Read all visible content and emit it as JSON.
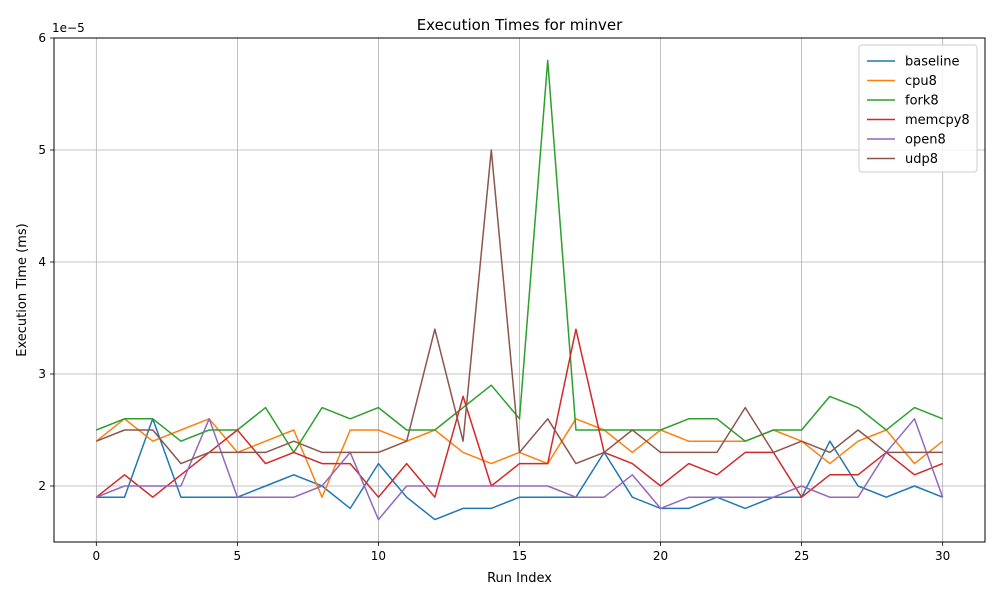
{
  "chart_data": {
    "type": "line",
    "title": "Execution Times for minver",
    "xlabel": "Run Index",
    "ylabel": "Execution Time (ms)",
    "y_offset_label": "1e−5",
    "y_scale_factor": 1e-05,
    "xlim": [
      -1.5,
      31.5
    ],
    "ylim": [
      1.5,
      6.0
    ],
    "x_ticks": [
      0,
      5,
      10,
      15,
      20,
      25,
      30
    ],
    "y_ticks": [
      2,
      3,
      4,
      5,
      6
    ],
    "grid": true,
    "legend_position": "top-right",
    "x": [
      0,
      1,
      2,
      3,
      4,
      5,
      6,
      7,
      8,
      9,
      10,
      11,
      12,
      13,
      14,
      15,
      16,
      17,
      18,
      19,
      20,
      21,
      22,
      23,
      24,
      25,
      26,
      27,
      28,
      29,
      30
    ],
    "series": [
      {
        "name": "baseline",
        "color": "#1f77b4",
        "values": [
          1.9,
          1.9,
          2.6,
          1.9,
          1.9,
          1.9,
          2.0,
          2.1,
          2.0,
          1.8,
          2.2,
          1.9,
          1.7,
          1.8,
          1.8,
          1.9,
          1.9,
          1.9,
          2.3,
          1.9,
          1.8,
          1.8,
          1.9,
          1.8,
          1.9,
          1.9,
          2.4,
          2.0,
          1.9,
          2.0,
          1.9
        ]
      },
      {
        "name": "cpu8",
        "color": "#ff7f0e",
        "values": [
          2.4,
          2.6,
          2.4,
          2.5,
          2.6,
          2.3,
          2.4,
          2.5,
          1.9,
          2.5,
          2.5,
          2.4,
          2.5,
          2.3,
          2.2,
          2.3,
          2.2,
          2.6,
          2.5,
          2.3,
          2.5,
          2.4,
          2.4,
          2.4,
          2.5,
          2.4,
          2.2,
          2.4,
          2.5,
          2.2,
          2.4
        ]
      },
      {
        "name": "fork8",
        "color": "#2ca02c",
        "values": [
          2.5,
          2.6,
          2.6,
          2.4,
          2.5,
          2.5,
          2.7,
          2.3,
          2.7,
          2.6,
          2.7,
          2.5,
          2.5,
          2.7,
          2.9,
          2.6,
          5.8,
          2.5,
          2.5,
          2.5,
          2.5,
          2.6,
          2.6,
          2.4,
          2.5,
          2.5,
          2.8,
          2.7,
          2.5,
          2.7,
          2.6
        ]
      },
      {
        "name": "memcpy8",
        "color": "#d62728",
        "values": [
          1.9,
          2.1,
          1.9,
          2.1,
          2.3,
          2.5,
          2.2,
          2.3,
          2.2,
          2.2,
          1.9,
          2.2,
          1.9,
          2.8,
          2.0,
          2.2,
          2.2,
          3.4,
          2.3,
          2.2,
          2.0,
          2.2,
          2.1,
          2.3,
          2.3,
          1.9,
          2.1,
          2.1,
          2.3,
          2.1,
          2.2
        ]
      },
      {
        "name": "open8",
        "color": "#9467bd",
        "values": [
          1.9,
          2.0,
          2.0,
          2.0,
          2.6,
          1.9,
          1.9,
          1.9,
          2.0,
          2.3,
          1.7,
          2.0,
          2.0,
          2.0,
          2.0,
          2.0,
          2.0,
          1.9,
          1.9,
          2.1,
          1.8,
          1.9,
          1.9,
          1.9,
          1.9,
          2.0,
          1.9,
          1.9,
          2.3,
          2.6,
          1.9
        ]
      },
      {
        "name": "udp8",
        "color": "#8c564b",
        "values": [
          2.4,
          2.5,
          2.5,
          2.2,
          2.3,
          2.3,
          2.3,
          2.4,
          2.3,
          2.3,
          2.3,
          2.4,
          3.4,
          2.4,
          5.0,
          2.3,
          2.6,
          2.2,
          2.3,
          2.5,
          2.3,
          2.3,
          2.3,
          2.7,
          2.3,
          2.4,
          2.3,
          2.5,
          2.3,
          2.3,
          2.3
        ]
      }
    ]
  }
}
